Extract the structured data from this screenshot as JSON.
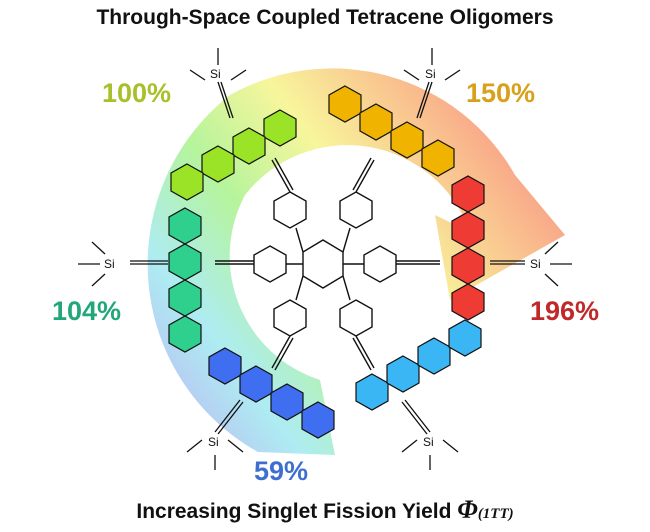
{
  "title": "Through-Space Coupled Tetracene Oligomers",
  "footer": {
    "text": "Increasing Singlet Fission Yield",
    "phi_symbol": "Φ",
    "subscript": "(1TT)"
  },
  "labels": {
    "tips_si": "Si"
  },
  "yields": [
    {
      "text": "100%",
      "color": "#a8c02a"
    },
    {
      "text": "150%",
      "color": "#d9a01b"
    },
    {
      "text": "196%",
      "color": "#c0282a"
    },
    {
      "text": "104%",
      "color": "#22a77a"
    },
    {
      "text": "59%",
      "color": "#3e6fd0"
    }
  ],
  "tetracene_colors": {
    "green": "#9be327",
    "orange": "#f0b400",
    "red": "#ee3b34",
    "teal": "#2fcf8e",
    "blue": "#3f6ff0",
    "cyan": "#39b6f3"
  },
  "arrow_gradient": [
    "#b59cf0",
    "#9fe9f0",
    "#a9f28a",
    "#f6f48a",
    "#f8c07d",
    "#f7876f"
  ]
}
